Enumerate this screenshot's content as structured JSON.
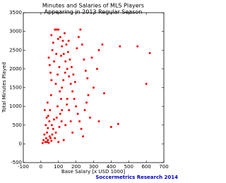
{
  "chart_data": {
    "type": "scatter",
    "title": "Minutes and Salaries of MLS Players",
    "subtitle": "Appearing in 2013 Regular Season",
    "x_label": "Base Salary [x USD 1000]",
    "y_label": "Total Minutes Played",
    "footer": "Soccermetrics Research 2014",
    "color": "#ff0000",
    "grid": false,
    "xlim": [
      -100,
      700
    ],
    "xticks": [
      -100,
      0,
      100,
      200,
      300,
      400,
      500,
      600,
      700
    ],
    "ylim": [
      -500,
      3500
    ],
    "yticks": [
      -500,
      0,
      500,
      1000,
      1500,
      2000,
      2500,
      3000,
      3500
    ],
    "x": [
      35,
      40,
      45,
      50,
      35,
      40,
      55,
      60,
      48,
      42,
      65,
      70,
      52,
      38,
      58,
      62,
      75,
      80,
      85,
      90,
      95,
      100,
      105,
      110,
      115,
      120,
      60,
      55,
      50,
      45,
      65,
      70,
      60,
      80,
      90,
      100,
      110,
      120,
      130,
      140,
      150,
      160,
      170,
      180,
      190,
      200,
      210,
      220,
      230,
      240,
      250,
      260,
      270,
      280,
      85,
      95,
      105,
      115,
      125,
      135,
      145,
      155,
      165,
      175,
      185,
      195,
      205,
      215,
      225,
      235,
      245,
      255,
      265,
      150,
      160,
      170,
      180,
      130,
      140,
      120,
      15,
      20,
      25,
      30,
      10,
      28,
      33,
      22,
      300,
      320,
      330,
      350,
      360,
      400,
      440,
      450,
      550,
      620,
      600,
      330,
      290,
      75,
      88,
      98,
      108,
      118,
      128,
      138,
      148,
      158
    ],
    "y": [
      50,
      100,
      30,
      200,
      300,
      420,
      150,
      80,
      600,
      750,
      250,
      400,
      900,
      1100,
      1300,
      500,
      650,
      150,
      300,
      700,
      1000,
      50,
      450,
      800,
      1200,
      1500,
      1700,
      1900,
      2100,
      2300,
      2500,
      2700,
      2900,
      3050,
      3050,
      3050,
      2850,
      2600,
      2400,
      2200,
      2000,
      1800,
      1600,
      1400,
      1200,
      1000,
      800,
      600,
      400,
      200,
      900,
      1100,
      1300,
      700,
      1600,
      1850,
      2050,
      2350,
      2750,
      2950,
      2650,
      2450,
      2250,
      2050,
      1850,
      1650,
      2550,
      2850,
      3050,
      2650,
      2250,
      1950,
      1750,
      1200,
      900,
      600,
      300,
      100,
      500,
      900,
      100,
      250,
      50,
      150,
      20,
      500,
      700,
      900,
      1500,
      2000,
      2500,
      2650,
      1350,
      450,
      530,
      2600,
      2600,
      2420,
      1600,
      600,
      2300,
      2200,
      2400,
      2800,
      1400,
      600,
      1700,
      1900,
      1050,
      2750
    ]
  }
}
